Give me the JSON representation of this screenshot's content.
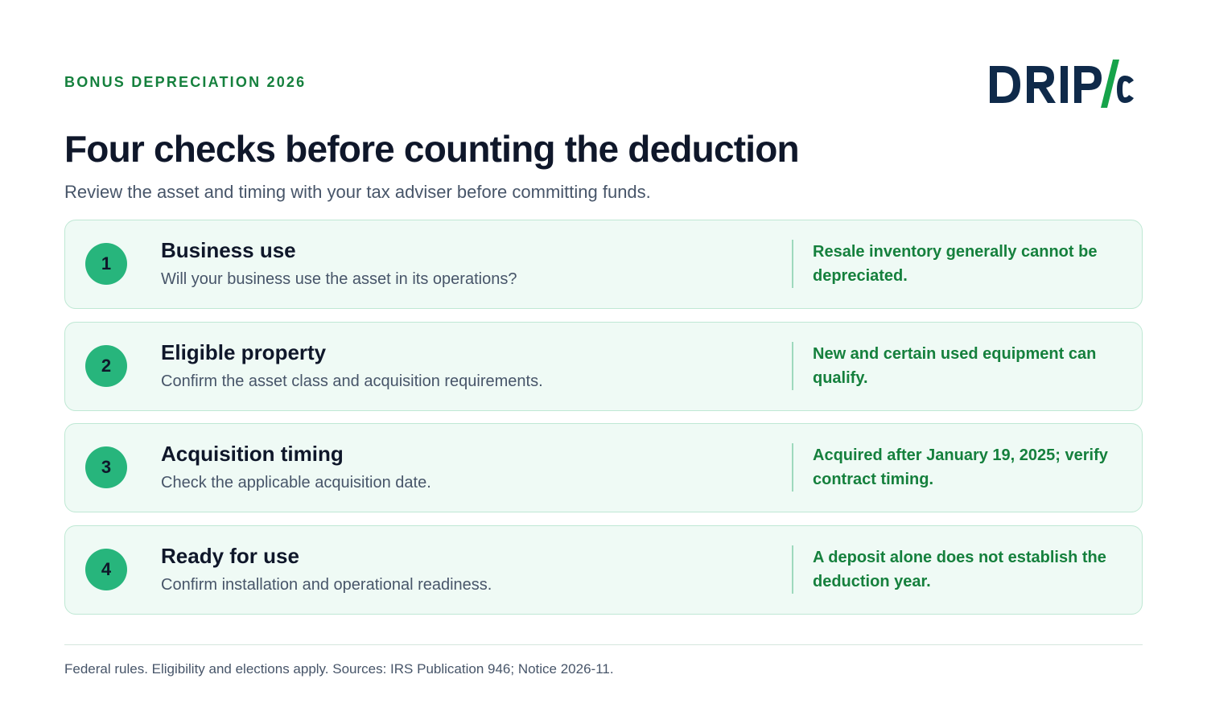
{
  "header": {
    "eyebrow": "BONUS DEPRECIATION 2026",
    "title": "Four checks before counting the deduction",
    "subtitle": "Review the asset and timing with your tax adviser before committing funds.",
    "logo_text": "DRIP/c"
  },
  "colors": {
    "accent_green": "#15803d",
    "badge_green": "#27b57c",
    "card_background": "#effaf5",
    "logo_navy": "#0f2a4a"
  },
  "checks": [
    {
      "number": "1",
      "title": "Business use",
      "description": "Will your business use the asset in its operations?",
      "note": "Resale inventory generally cannot be depreciated."
    },
    {
      "number": "2",
      "title": "Eligible property",
      "description": "Confirm the asset class and acquisition requirements.",
      "note": "New and certain used equipment can qualify."
    },
    {
      "number": "3",
      "title": "Acquisition timing",
      "description": "Check the applicable acquisition date.",
      "note": "Acquired after January 19, 2025; verify contract timing."
    },
    {
      "number": "4",
      "title": "Ready for use",
      "description": "Confirm installation and operational readiness.",
      "note": "A deposit alone does not establish the deduction year."
    }
  ],
  "footer": {
    "note": "Federal rules. Eligibility and elections apply. Sources: IRS Publication 946; Notice 2026-11."
  }
}
